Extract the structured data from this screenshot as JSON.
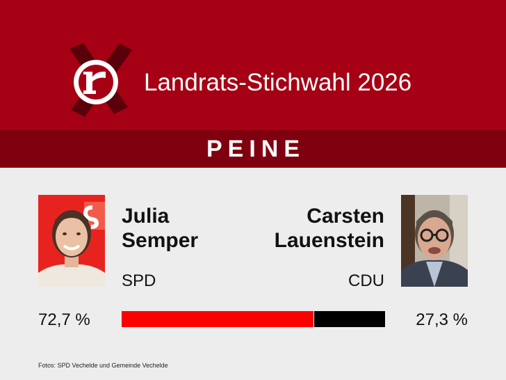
{
  "header": {
    "title": "Landrats-Stichwahl 2026",
    "logo_icon": "r-logo-icon",
    "background": "#a50014"
  },
  "region": {
    "label": "PEINE",
    "background": "#7f000e"
  },
  "candidates": [
    {
      "first_name": "Julia",
      "last_name": "Semper",
      "party": "SPD",
      "percent_label": "72,7 %",
      "share": 0.727,
      "color": "#ff0000"
    },
    {
      "first_name": "Carsten",
      "last_name": "Lauenstein",
      "party": "CDU",
      "percent_label": "27,3 %",
      "share": 0.273,
      "color": "#000000"
    }
  ],
  "credit": "Fotos: SPD Vechelde und Gemeinde Vechelde"
}
